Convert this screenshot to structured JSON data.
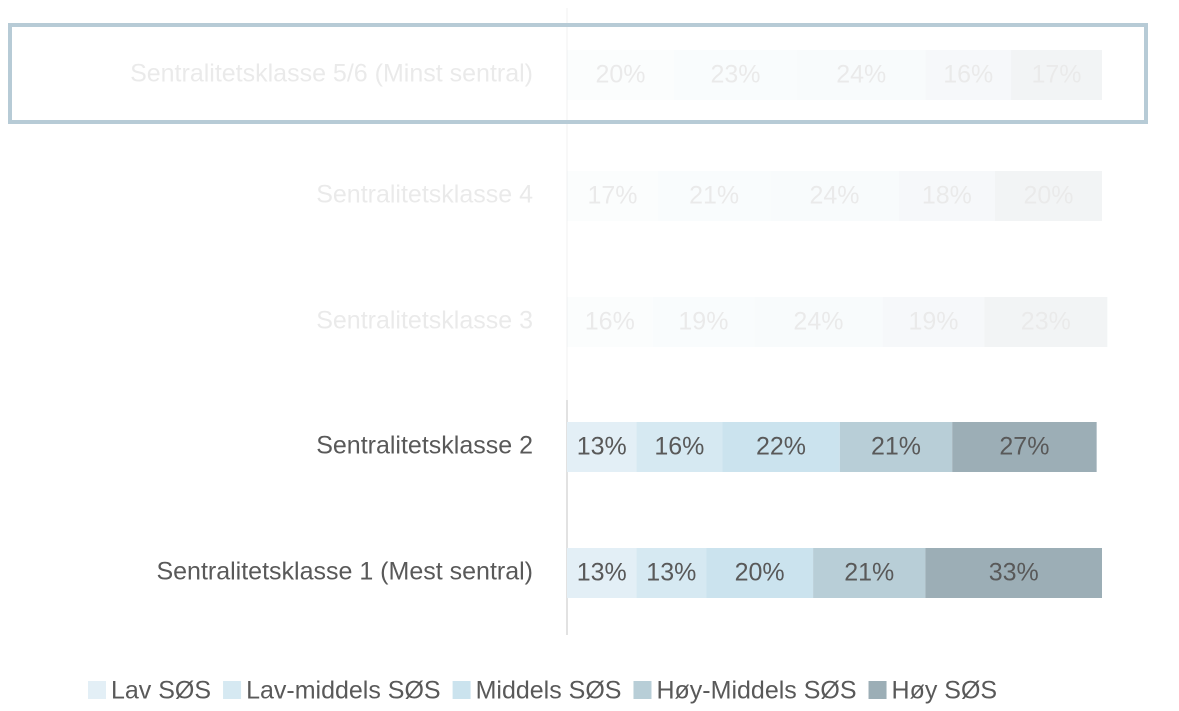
{
  "chart_data": {
    "type": "stacked-bar-horizontal",
    "categories": [
      "Sentralitetsklasse 5/6 (Minst sentral)",
      "Sentralitetsklasse 4",
      "Sentralitetsklasse 3",
      "Sentralitetsklasse 2",
      "Sentralitetsklasse 1 (Mest sentral)"
    ],
    "series": [
      {
        "name": "Lav SØS",
        "color": "#e3eff6",
        "values": [
          20,
          17,
          16,
          13,
          13
        ],
        "value_labels": [
          "20%",
          "17%",
          "16%",
          "13%",
          "13%"
        ]
      },
      {
        "name": "Lav-middels SØS",
        "color": "#d6e9f2",
        "values": [
          23,
          21,
          19,
          16,
          13
        ],
        "value_labels": [
          "23%",
          "21%",
          "19%",
          "16%",
          "13%"
        ]
      },
      {
        "name": "Middels SØS",
        "color": "#cbe3ee",
        "values": [
          24,
          24,
          24,
          22,
          20
        ],
        "value_labels": [
          "24%",
          "24%",
          "24%",
          "22%",
          "20%"
        ]
      },
      {
        "name": "Høy-Middels SØS",
        "color": "#b8ced7",
        "values": [
          16,
          18,
          19,
          21,
          21
        ],
        "value_labels": [
          "16%",
          "18%",
          "19%",
          "21%",
          "21%"
        ]
      },
      {
        "name": "Høy SØS",
        "color": "#9caeb6",
        "values": [
          17,
          20,
          23,
          27,
          33
        ],
        "value_labels": [
          "17%",
          "20%",
          "23%",
          "27%",
          "33%"
        ]
      }
    ],
    "legend": "bottom"
  }
}
